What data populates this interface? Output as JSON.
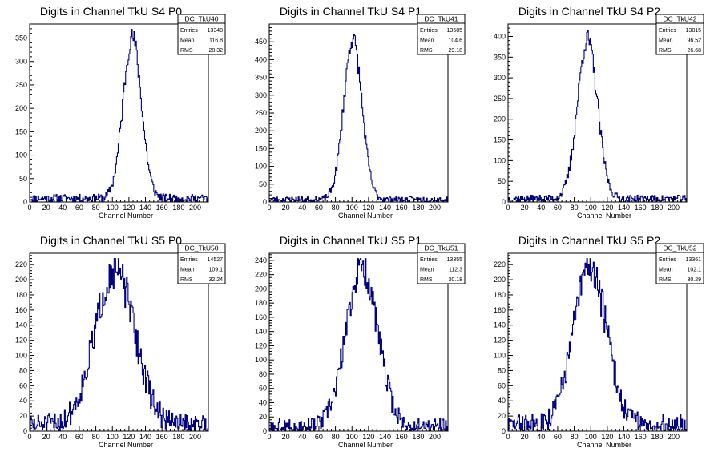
{
  "colors": {
    "histogram": "#000080",
    "frame": "#000000",
    "background": "#ffffff"
  },
  "chart_data": [
    {
      "type": "histogram",
      "title": "Digits in Channel TkU S4 P0",
      "xlabel": "Channel Number",
      "xlim": [
        0,
        216
      ],
      "ylim": [
        0,
        380
      ],
      "xticks": [
        0,
        20,
        40,
        60,
        80,
        100,
        120,
        140,
        160,
        180,
        200
      ],
      "yticks": [
        50,
        100,
        150,
        200,
        250,
        300,
        350
      ],
      "stats": {
        "name": "DC_TkU40",
        "rows": [
          {
            "label": "Entries",
            "value": "13348"
          },
          {
            "label": "Mean",
            "value": "116.8"
          },
          {
            "label": "RMS",
            "value": "28.32"
          }
        ]
      },
      "shape": {
        "mean": 124,
        "sigma": 11,
        "peak": 345,
        "baseline": 8,
        "noise": 6,
        "seed": 11
      }
    },
    {
      "type": "histogram",
      "title": "Digits in Channel TkU S4 P1",
      "xlabel": "Channel Number",
      "xlim": [
        0,
        216
      ],
      "ylim": [
        0,
        500
      ],
      "xticks": [
        0,
        20,
        40,
        60,
        80,
        100,
        120,
        140,
        160,
        180,
        200
      ],
      "yticks": [
        50,
        100,
        150,
        200,
        250,
        300,
        350,
        400,
        450
      ],
      "stats": {
        "name": "DC_TkU41",
        "rows": [
          {
            "label": "Entries",
            "value": "13585"
          },
          {
            "label": "Mean",
            "value": "104.6"
          },
          {
            "label": "RMS",
            "value": "29.18"
          }
        ]
      },
      "shape": {
        "mean": 101,
        "sigma": 11,
        "peak": 450,
        "baseline": 7,
        "noise": 6,
        "seed": 23
      }
    },
    {
      "type": "histogram",
      "title": "Digits in Channel TkU S4 P2",
      "xlabel": "Channel Number",
      "xlim": [
        0,
        216
      ],
      "ylim": [
        0,
        430
      ],
      "xticks": [
        0,
        20,
        40,
        60,
        80,
        100,
        120,
        140,
        160,
        180,
        200
      ],
      "yticks": [
        50,
        100,
        150,
        200,
        250,
        300,
        350,
        400
      ],
      "stats": {
        "name": "DC_TkU42",
        "rows": [
          {
            "label": "Entries",
            "value": "13815"
          },
          {
            "label": "Mean",
            "value": "96.52"
          },
          {
            "label": "RMS",
            "value": "26.68"
          }
        ]
      },
      "shape": {
        "mean": 96,
        "sigma": 12,
        "peak": 385,
        "baseline": 8,
        "noise": 6,
        "seed": 37
      }
    },
    {
      "type": "histogram",
      "title": "Digits in Channel TkU S5 P0",
      "xlabel": "Channel Number",
      "xlim": [
        0,
        216
      ],
      "ylim": [
        0,
        235
      ],
      "xticks": [
        0,
        20,
        40,
        60,
        80,
        100,
        120,
        140,
        160,
        180,
        200
      ],
      "yticks": [
        20,
        40,
        60,
        80,
        100,
        120,
        140,
        160,
        180,
        200,
        220
      ],
      "stats": {
        "name": "DC_TkU50",
        "rows": [
          {
            "label": "Entries",
            "value": "14527"
          },
          {
            "label": "Mean",
            "value": "109.1"
          },
          {
            "label": "RMS",
            "value": "32.24"
          }
        ]
      },
      "shape": {
        "mean": 103,
        "sigma": 24,
        "peak": 205,
        "baseline": 8,
        "noise": 12,
        "seed": 51
      }
    },
    {
      "type": "histogram",
      "title": "Digits in Channel TkU S5 P1",
      "xlabel": "Channel Number",
      "xlim": [
        0,
        216
      ],
      "ylim": [
        0,
        250
      ],
      "xticks": [
        0,
        20,
        40,
        60,
        80,
        100,
        120,
        140,
        160,
        180,
        200
      ],
      "yticks": [
        20,
        40,
        60,
        80,
        100,
        120,
        140,
        160,
        180,
        200,
        220,
        240
      ],
      "stats": {
        "name": "DC_TkU51",
        "rows": [
          {
            "label": "Entries",
            "value": "13355"
          },
          {
            "label": "Mean",
            "value": "112.3"
          },
          {
            "label": "RMS",
            "value": "30.18"
          }
        ]
      },
      "shape": {
        "mean": 112,
        "sigma": 19,
        "peak": 225,
        "baseline": 6,
        "noise": 10,
        "seed": 67
      }
    },
    {
      "type": "histogram",
      "title": "Digits in Channel TkU S5 P2",
      "xlabel": "Channel Number",
      "xlim": [
        0,
        216
      ],
      "ylim": [
        0,
        235
      ],
      "xticks": [
        0,
        20,
        40,
        60,
        80,
        100,
        120,
        140,
        160,
        180,
        200
      ],
      "yticks": [
        20,
        40,
        60,
        80,
        100,
        120,
        140,
        160,
        180,
        200,
        220
      ],
      "stats": {
        "name": "DC_TkU52",
        "rows": [
          {
            "label": "Entries",
            "value": "13361"
          },
          {
            "label": "Mean",
            "value": "102.1"
          },
          {
            "label": "RMS",
            "value": "30.29"
          }
        ]
      },
      "shape": {
        "mean": 99,
        "sigma": 20,
        "peak": 210,
        "baseline": 8,
        "noise": 12,
        "seed": 83
      }
    }
  ]
}
